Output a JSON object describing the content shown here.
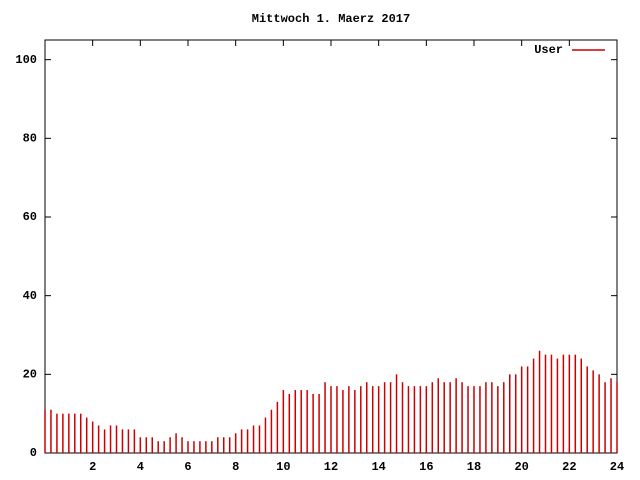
{
  "chart_data": {
    "type": "impulse",
    "title": "Mittwoch 1. Maerz 2017",
    "x": [
      0,
      0.25,
      0.5,
      0.75,
      1,
      1.25,
      1.5,
      1.75,
      2,
      2.25,
      2.5,
      2.75,
      3,
      3.25,
      3.5,
      3.75,
      4,
      4.25,
      4.5,
      4.75,
      5,
      5.25,
      5.5,
      5.75,
      6,
      6.25,
      6.5,
      6.75,
      7,
      7.25,
      7.5,
      7.75,
      8,
      8.25,
      8.5,
      8.75,
      9,
      9.25,
      9.5,
      9.75,
      10,
      10.25,
      10.5,
      10.75,
      11,
      11.25,
      11.5,
      11.75,
      12,
      12.25,
      12.5,
      12.75,
      13,
      13.25,
      13.5,
      13.75,
      14,
      14.25,
      14.5,
      14.75,
      15,
      15.25,
      15.5,
      15.75,
      16,
      16.25,
      16.5,
      16.75,
      17,
      17.25,
      17.5,
      17.75,
      18,
      18.25,
      18.5,
      18.75,
      19,
      19.25,
      19.5,
      19.75,
      20,
      20.25,
      20.5,
      20.75,
      21,
      21.25,
      21.5,
      21.75,
      22,
      22.25,
      22.5,
      22.75,
      23,
      23.25,
      23.5,
      23.75,
      24
    ],
    "series": [
      {
        "name": "User",
        "color": "#cc0000",
        "values": [
          11,
          11,
          10,
          10,
          10,
          10,
          10,
          9,
          8,
          7,
          6,
          7,
          7,
          6,
          6,
          6,
          4,
          4,
          4,
          3,
          3,
          4,
          5,
          4,
          3,
          3,
          3,
          3,
          3,
          4,
          4,
          4,
          5,
          6,
          6,
          7,
          7,
          9,
          11,
          13,
          16,
          15,
          16,
          16,
          16,
          15,
          15,
          18,
          17,
          17,
          16,
          17,
          16,
          17,
          18,
          17,
          17,
          18,
          18,
          20,
          18,
          17,
          17,
          17,
          17,
          18,
          19,
          18,
          18,
          19,
          18,
          17,
          17,
          17,
          18,
          18,
          17,
          18,
          20,
          20,
          22,
          22,
          24,
          26,
          25,
          25,
          24,
          25,
          25,
          25,
          24,
          22,
          21,
          20,
          18,
          19,
          18
        ]
      }
    ],
    "xlim": [
      0,
      24
    ],
    "xticks": [
      2,
      4,
      6,
      8,
      10,
      12,
      14,
      16,
      18,
      20,
      22,
      24
    ],
    "ylim": [
      0,
      105
    ],
    "yticks": [
      0,
      20,
      40,
      60,
      80,
      100
    ],
    "legend": "top-right"
  }
}
